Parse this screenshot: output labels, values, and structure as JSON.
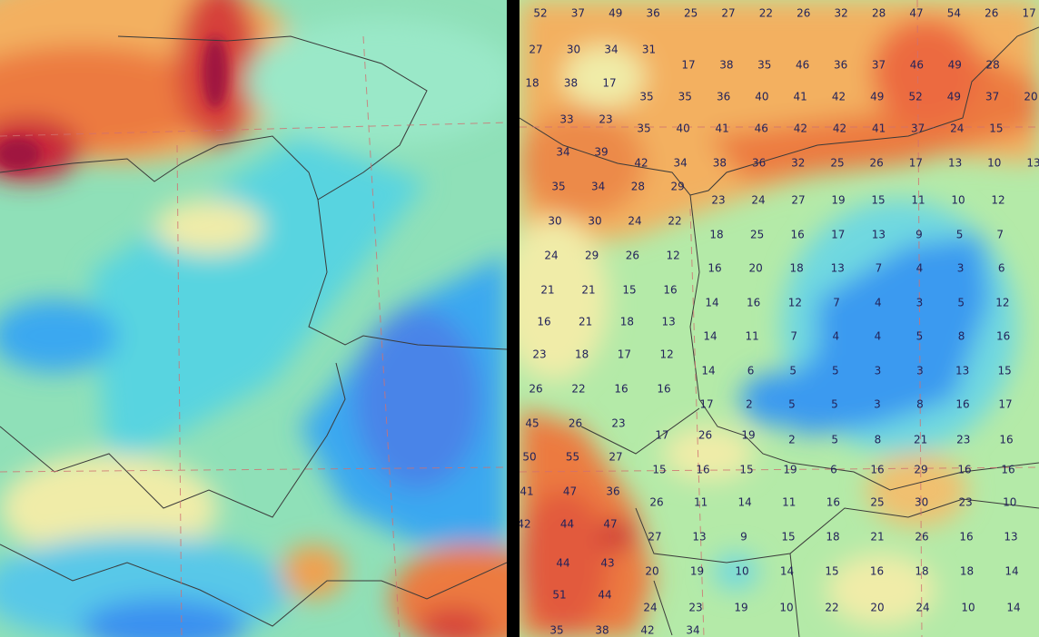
{
  "right_panel": {
    "value_rows": [
      [
        52,
        37,
        49,
        36,
        25,
        27,
        22,
        26,
        32,
        28,
        47,
        54,
        26,
        17
      ],
      [
        27,
        30,
        34,
        31
      ],
      [
        17,
        38,
        35,
        46,
        36,
        37,
        46,
        49,
        28
      ],
      [
        18,
        38,
        17
      ],
      [
        35,
        35,
        36,
        40,
        41,
        42,
        49,
        52,
        49,
        37,
        20
      ],
      [
        33,
        23
      ],
      [
        35,
        40,
        41,
        46,
        42,
        42,
        41,
        37,
        24,
        15
      ],
      [
        34,
        39
      ],
      [
        42,
        34,
        38,
        36,
        32,
        25,
        26,
        17,
        13,
        10,
        13
      ],
      [
        35,
        34,
        28,
        29
      ],
      [
        23,
        24,
        27,
        19,
        15,
        11,
        10,
        12
      ],
      [
        30,
        30,
        24,
        22
      ],
      [
        18,
        25,
        16,
        17,
        13,
        9,
        5,
        7
      ],
      [
        24,
        29,
        26,
        12
      ],
      [
        16,
        20,
        18,
        13,
        7,
        4,
        3,
        6
      ],
      [
        21,
        21,
        15,
        16
      ],
      [
        14,
        16,
        12,
        7,
        4,
        3,
        5,
        12
      ],
      [
        16,
        21,
        18,
        13
      ],
      [
        14,
        11,
        7,
        4,
        4,
        5,
        8,
        16
      ],
      [
        23,
        18,
        17,
        12
      ],
      [
        14,
        6,
        5,
        5,
        3,
        3,
        13,
        15
      ],
      [
        26,
        22,
        16,
        16
      ],
      [
        17,
        2,
        5,
        5,
        3,
        8,
        16,
        17
      ],
      [
        45,
        26,
        23
      ],
      [
        17,
        26,
        19
      ],
      [
        2,
        5,
        8,
        21,
        23,
        16
      ],
      [
        50,
        55,
        27
      ],
      [
        15,
        16,
        15,
        19,
        6,
        16,
        29,
        16,
        16
      ],
      [
        41,
        47,
        36
      ],
      [
        26,
        11,
        14,
        11,
        16,
        25,
        30,
        23,
        10
      ],
      [
        42,
        44,
        47
      ],
      [
        27,
        13,
        9,
        15,
        18,
        21,
        26,
        16,
        13
      ],
      [
        44,
        43
      ],
      [
        20,
        19,
        10,
        14,
        15,
        16,
        18,
        18,
        14
      ],
      [
        51,
        44
      ],
      [
        24,
        23,
        19,
        10,
        22,
        20,
        24,
        10,
        14
      ],
      [
        35,
        38,
        42,
        34
      ]
    ]
  }
}
